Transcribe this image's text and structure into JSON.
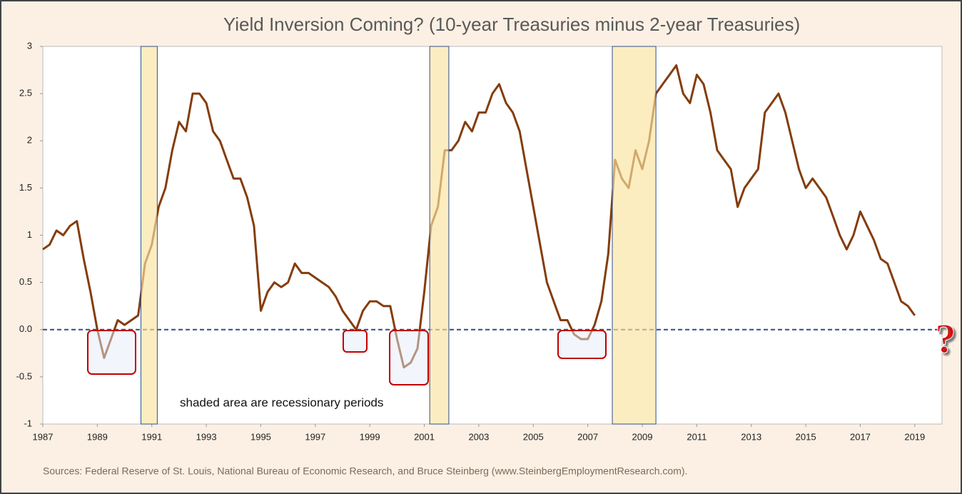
{
  "chart_data": {
    "type": "line",
    "title": "Yield Inversion Coming? (10-year Treasuries minus 2-year Treasuries)",
    "annotations": [
      "shaded area are recessionary periods",
      "?"
    ],
    "source": "Sources: Federal Reserve of St. Louis, National Bureau of Economic Research, and Bruce Steinberg (www.SteinbergEmploymentResearch.com).",
    "color": "#843c0c",
    "recession_color": "#fbe3a0",
    "reference_line": 0,
    "grid": false,
    "recessions": [
      [
        1990.6,
        1991.2
      ],
      [
        2001.2,
        2001.9
      ],
      [
        2007.9,
        2009.5
      ]
    ],
    "x": [
      1987,
      1987.25,
      1987.5,
      1987.75,
      1988,
      1988.25,
      1988.5,
      1988.75,
      1989,
      1989.25,
      1989.5,
      1989.75,
      1990,
      1990.25,
      1990.5,
      1990.75,
      1991,
      1991.25,
      1991.5,
      1991.75,
      1992,
      1992.25,
      1992.5,
      1992.75,
      1993,
      1993.25,
      1993.5,
      1993.75,
      1994,
      1994.25,
      1994.5,
      1994.75,
      1995,
      1995.25,
      1995.5,
      1995.75,
      1996,
      1996.25,
      1996.5,
      1996.75,
      1997,
      1997.25,
      1997.5,
      1997.75,
      1998,
      1998.25,
      1998.5,
      1998.75,
      1999,
      1999.25,
      1999.5,
      1999.75,
      2000,
      2000.25,
      2000.5,
      2000.75,
      2001,
      2001.25,
      2001.5,
      2001.75,
      2002,
      2002.25,
      2002.5,
      2002.75,
      2003,
      2003.25,
      2003.5,
      2003.75,
      2004,
      2004.25,
      2004.5,
      2004.75,
      2005,
      2005.25,
      2005.5,
      2005.75,
      2006,
      2006.25,
      2006.5,
      2006.75,
      2007,
      2007.25,
      2007.5,
      2007.75,
      2008,
      2008.25,
      2008.5,
      2008.75,
      2009,
      2009.25,
      2009.5,
      2009.75,
      2010,
      2010.25,
      2010.5,
      2010.75,
      2011,
      2011.25,
      2011.5,
      2011.75,
      2012,
      2012.25,
      2012.5,
      2012.75,
      2013,
      2013.25,
      2013.5,
      2013.75,
      2014,
      2014.25,
      2014.5,
      2014.75,
      2015,
      2015.25,
      2015.5,
      2015.75,
      2016,
      2016.25,
      2016.5,
      2016.75,
      2017,
      2017.25,
      2017.5,
      2017.75,
      2018,
      2018.25,
      2018.5,
      2018.75,
      2019
    ],
    "values": [
      0.85,
      0.9,
      1.05,
      1.0,
      1.1,
      1.15,
      0.75,
      0.4,
      0.0,
      -0.3,
      -0.1,
      0.1,
      0.05,
      0.1,
      0.15,
      0.7,
      0.9,
      1.3,
      1.5,
      1.9,
      2.2,
      2.1,
      2.5,
      2.5,
      2.4,
      2.1,
      2.0,
      1.8,
      1.6,
      1.6,
      1.4,
      1.1,
      0.2,
      0.4,
      0.5,
      0.45,
      0.5,
      0.7,
      0.6,
      0.6,
      0.55,
      0.5,
      0.45,
      0.35,
      0.2,
      0.1,
      0.0,
      0.2,
      0.3,
      0.3,
      0.25,
      0.25,
      -0.1,
      -0.4,
      -0.35,
      -0.2,
      0.4,
      1.1,
      1.3,
      1.9,
      1.9,
      2.0,
      2.2,
      2.1,
      2.3,
      2.3,
      2.5,
      2.6,
      2.4,
      2.3,
      2.1,
      1.7,
      1.3,
      0.9,
      0.5,
      0.3,
      0.1,
      0.1,
      -0.05,
      -0.1,
      -0.1,
      0.05,
      0.3,
      0.8,
      1.8,
      1.6,
      1.5,
      1.9,
      1.7,
      2.0,
      2.5,
      2.6,
      2.7,
      2.8,
      2.5,
      2.4,
      2.7,
      2.6,
      2.3,
      1.9,
      1.8,
      1.7,
      1.3,
      1.5,
      1.6,
      1.7,
      2.3,
      2.4,
      2.5,
      2.3,
      2.0,
      1.7,
      1.5,
      1.6,
      1.5,
      1.4,
      1.2,
      1.0,
      0.85,
      1.0,
      1.25,
      1.1,
      0.95,
      0.75,
      0.7,
      0.5,
      0.3,
      0.25,
      0.15
    ],
    "xlim": [
      1987,
      2020
    ],
    "xticks": [
      1987,
      1989,
      1991,
      1993,
      1995,
      1997,
      1999,
      2001,
      2003,
      2005,
      2007,
      2009,
      2011,
      2013,
      2015,
      2017,
      2019
    ],
    "ylim": [
      -1,
      3
    ],
    "yticks": [
      -1,
      -0.5,
      {
        "value": 0,
        "label": "0.0"
      },
      0.5,
      1,
      1.5,
      2,
      2.5,
      3
    ]
  }
}
